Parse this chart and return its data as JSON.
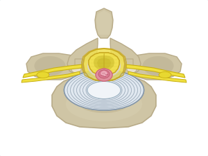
{
  "bg_color": "#ffffff",
  "border_color": "#b8ccd8",
  "vertebra_color": "#cfc5a5",
  "vertebra_dark": "#b8ab88",
  "vertebra_light": "#ddd5b8",
  "canal_color": "#e8e0cc",
  "cord_color": "#f0e050",
  "cord_edge": "#c8a820",
  "cord_inner": "#d4c840",
  "disc_outer": "#d0dce8",
  "disc_mid": "#c0ccd8",
  "disc_white": "#e8eef4",
  "disc_edge": "#8899aa",
  "herniation_outer": "#e090a0",
  "herniation_inner": "#d06878",
  "herniation_light": "#f0b0c0",
  "nerve_color": "#f0e040",
  "nerve_edge": "#c8b010",
  "spinous_color": "#c8be9e",
  "figsize": [
    3.0,
    2.25
  ],
  "dpi": 100
}
